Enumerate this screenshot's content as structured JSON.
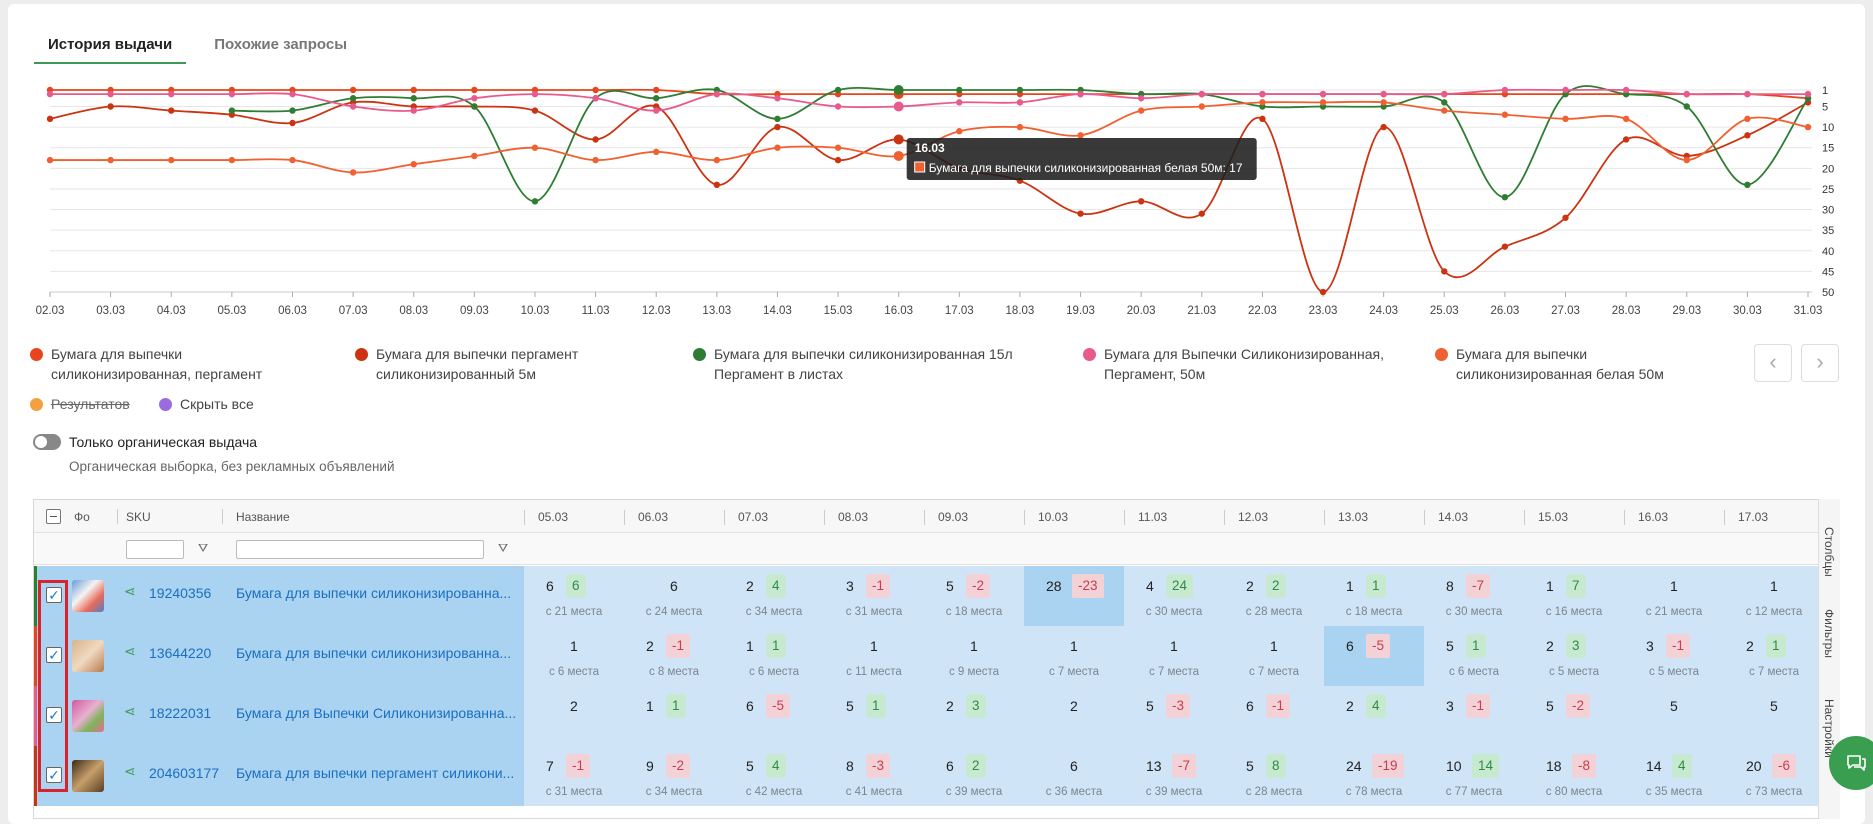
{
  "tabs": {
    "active": "История выдачи",
    "inactive": "Похожие запросы"
  },
  "chart_data": {
    "type": "line",
    "x": [
      "02.03",
      "03.03",
      "04.03",
      "05.03",
      "06.03",
      "07.03",
      "08.03",
      "09.03",
      "10.03",
      "11.03",
      "12.03",
      "13.03",
      "14.03",
      "15.03",
      "16.03",
      "17.03",
      "18.03",
      "19.03",
      "20.03",
      "21.03",
      "22.03",
      "23.03",
      "24.03",
      "25.03",
      "26.03",
      "27.03",
      "28.03",
      "29.03",
      "30.03",
      "31.03"
    ],
    "y_ticks": [
      "1",
      "5",
      "10",
      "15",
      "20",
      "25",
      "30",
      "35",
      "40",
      "45",
      "50"
    ],
    "ylim": [
      1,
      50
    ],
    "y_reversed": true,
    "grid": true,
    "series": [
      {
        "name": "Бумага для выпечки силиконизированная, пергамент",
        "color": "#e8451d",
        "values": [
          1,
          1,
          1,
          1,
          1,
          1,
          1,
          1,
          1,
          1,
          1,
          2,
          2,
          2,
          2,
          2,
          2,
          2,
          2,
          2,
          2,
          2,
          2,
          2,
          2,
          2,
          2,
          2,
          2,
          3
        ]
      },
      {
        "name": "Бумага для выпечки пергамент силиконизированный 5м",
        "color": "#cc3311",
        "values": [
          8,
          5,
          6,
          7,
          9,
          4,
          5,
          5,
          6,
          13,
          5,
          24,
          10,
          18,
          13,
          20,
          23,
          31,
          28,
          31,
          8,
          50,
          10,
          45,
          39,
          32,
          13,
          17,
          12,
          4
        ]
      },
      {
        "name": "Бумага для выпечки силиконизированная 15л Пергамент в листах",
        "color": "#2e7d32",
        "values": [
          null,
          null,
          null,
          6,
          6,
          3,
          3,
          5,
          28,
          3,
          3,
          1,
          8,
          1,
          1,
          1,
          1,
          1,
          2,
          2,
          5,
          5,
          5,
          4,
          27,
          2,
          2,
          5,
          24,
          3
        ]
      },
      {
        "name": "Бумага для Выпечки Силиконизированная, Пергамент, 50м",
        "color": "#e85a8c",
        "values": [
          2,
          2,
          2,
          2,
          2,
          5,
          6,
          3,
          2,
          3,
          6,
          2,
          3,
          5,
          5,
          4,
          4,
          2,
          3,
          2,
          2,
          2,
          2,
          2,
          1,
          1,
          1,
          2,
          2,
          2
        ]
      },
      {
        "name": "Бумага для выпечки силиконизированная белая 50м",
        "color": "#f06030",
        "values": [
          18,
          18,
          18,
          18,
          18,
          21,
          19,
          17,
          15,
          18,
          16,
          18,
          15,
          15,
          17,
          11,
          10,
          12,
          6,
          5,
          4,
          4,
          4,
          6,
          7,
          8,
          8,
          18,
          8,
          10
        ]
      }
    ]
  },
  "tooltip": {
    "date": "16.03",
    "text": "Бумага для выпечки силиконизированная белая 50м: 17"
  },
  "legend": [
    {
      "line1": "Бумага для выпечки",
      "line2": "силиконизированная, пергамент",
      "color": "#e8451d"
    },
    {
      "line1": "Бумага для выпечки пергамент",
      "line2": "силиконизированный 5м",
      "color": "#cc3311"
    },
    {
      "line1": "Бумага для выпечки силиконизированная 15л",
      "line2": "Пергамент в листах",
      "color": "#2e7d32"
    },
    {
      "line1": "Бумага для Выпечки Силиконизированная,",
      "line2": "Пергамент, 50м",
      "color": "#e85a8c"
    },
    {
      "line1": "Бумага для выпечки",
      "line2": "силиконизированная белая 50м",
      "color": "#f06030"
    }
  ],
  "legend_extra": {
    "results": "Результатов",
    "hide_all": "Скрыть все",
    "results_color": "#f5a040",
    "hide_color": "#9b6be0"
  },
  "organic": {
    "title": "Только органическая выдача",
    "subtitle": "Органическая выборка, без рекламных объявлений"
  },
  "table": {
    "col_photo": "Фо",
    "col_sku": "SKU",
    "col_name": "Название",
    "dates": [
      "05.03",
      "06.03",
      "07.03",
      "08.03",
      "09.03",
      "10.03",
      "11.03",
      "12.03",
      "13.03",
      "14.03",
      "15.03",
      "16.03",
      "17.03"
    ],
    "sidebar": [
      "Столбцы",
      "Фильтры",
      "Настройки"
    ],
    "rows": [
      {
        "sku": "19240356",
        "name": "Бумага для выпечки силиконизированна...",
        "accent": "#2e7d32",
        "cells": [
          {
            "pos": "6",
            "delta": "6",
            "dir": "up",
            "sub": "с 21 места"
          },
          {
            "pos": "6",
            "delta": "",
            "dir": "",
            "sub": "с 24 места"
          },
          {
            "pos": "2",
            "delta": "4",
            "dir": "up",
            "sub": "с 34 места"
          },
          {
            "pos": "3",
            "delta": "-1",
            "dir": "down",
            "sub": "с 31 места"
          },
          {
            "pos": "5",
            "delta": "-2",
            "dir": "down",
            "sub": "с 18 места"
          },
          {
            "pos": "28",
            "delta": "-23",
            "dir": "down",
            "sub": "",
            "hl": true
          },
          {
            "pos": "4",
            "delta": "24",
            "dir": "up",
            "sub": "с 30 места"
          },
          {
            "pos": "2",
            "delta": "2",
            "dir": "up",
            "sub": "с 28 места"
          },
          {
            "pos": "1",
            "delta": "1",
            "dir": "up",
            "sub": "с 18 места"
          },
          {
            "pos": "8",
            "delta": "-7",
            "dir": "down",
            "sub": "с 30 места"
          },
          {
            "pos": "1",
            "delta": "7",
            "dir": "up",
            "sub": "с 16 места"
          },
          {
            "pos": "1",
            "delta": "",
            "dir": "",
            "sub": "с 21 места"
          },
          {
            "pos": "1",
            "delta": "",
            "dir": "",
            "sub": "с 12 места"
          }
        ]
      },
      {
        "sku": "13644220",
        "name": "Бумага для выпечки силиконизированна...",
        "accent": "#e8451d",
        "cells": [
          {
            "pos": "1",
            "delta": "",
            "dir": "",
            "sub": "с 6 места"
          },
          {
            "pos": "2",
            "delta": "-1",
            "dir": "down",
            "sub": "с 8 места"
          },
          {
            "pos": "1",
            "delta": "1",
            "dir": "up",
            "sub": "с 6 места"
          },
          {
            "pos": "1",
            "delta": "",
            "dir": "",
            "sub": "с 11 места"
          },
          {
            "pos": "1",
            "delta": "",
            "dir": "",
            "sub": "с 9 места"
          },
          {
            "pos": "1",
            "delta": "",
            "dir": "",
            "sub": "с 7 места"
          },
          {
            "pos": "1",
            "delta": "",
            "dir": "",
            "sub": "с 7 места"
          },
          {
            "pos": "1",
            "delta": "",
            "dir": "",
            "sub": "с 7 места"
          },
          {
            "pos": "6",
            "delta": "-5",
            "dir": "down",
            "sub": "",
            "hl": true
          },
          {
            "pos": "5",
            "delta": "1",
            "dir": "up",
            "sub": "с 6 места"
          },
          {
            "pos": "2",
            "delta": "3",
            "dir": "up",
            "sub": "с 5 места"
          },
          {
            "pos": "3",
            "delta": "-1",
            "dir": "down",
            "sub": "с 5 места"
          },
          {
            "pos": "2",
            "delta": "1",
            "dir": "up",
            "sub": "с 7 места"
          }
        ]
      },
      {
        "sku": "18222031",
        "name": "Бумага для Выпечки Силиконизированна...",
        "accent": "#e85a8c",
        "cells": [
          {
            "pos": "2",
            "delta": "",
            "dir": "",
            "sub": ""
          },
          {
            "pos": "1",
            "delta": "1",
            "dir": "up",
            "sub": ""
          },
          {
            "pos": "6",
            "delta": "-5",
            "dir": "down",
            "sub": ""
          },
          {
            "pos": "5",
            "delta": "1",
            "dir": "up",
            "sub": ""
          },
          {
            "pos": "2",
            "delta": "3",
            "dir": "up",
            "sub": ""
          },
          {
            "pos": "2",
            "delta": "",
            "dir": "",
            "sub": ""
          },
          {
            "pos": "5",
            "delta": "-3",
            "dir": "down",
            "sub": ""
          },
          {
            "pos": "6",
            "delta": "-1",
            "dir": "down",
            "sub": ""
          },
          {
            "pos": "2",
            "delta": "4",
            "dir": "up",
            "sub": ""
          },
          {
            "pos": "3",
            "delta": "-1",
            "dir": "down",
            "sub": ""
          },
          {
            "pos": "5",
            "delta": "-2",
            "dir": "down",
            "sub": ""
          },
          {
            "pos": "5",
            "delta": "",
            "dir": "",
            "sub": ""
          },
          {
            "pos": "5",
            "delta": "",
            "dir": "",
            "sub": ""
          }
        ]
      },
      {
        "sku": "204603177",
        "name": "Бумага для выпечки пергамент силикони...",
        "accent": "#cc3311",
        "cells": [
          {
            "pos": "7",
            "delta": "-1",
            "dir": "down",
            "sub": "с 31 места"
          },
          {
            "pos": "9",
            "delta": "-2",
            "dir": "down",
            "sub": "с 34 места"
          },
          {
            "pos": "5",
            "delta": "4",
            "dir": "up",
            "sub": "с 42 места"
          },
          {
            "pos": "8",
            "delta": "-3",
            "dir": "down",
            "sub": "с 41 места"
          },
          {
            "pos": "6",
            "delta": "2",
            "dir": "up",
            "sub": "с 39 места"
          },
          {
            "pos": "6",
            "delta": "",
            "dir": "",
            "sub": "с 36 места"
          },
          {
            "pos": "13",
            "delta": "-7",
            "dir": "down",
            "sub": "с 39 места"
          },
          {
            "pos": "5",
            "delta": "8",
            "dir": "up",
            "sub": "с 28 места"
          },
          {
            "pos": "24",
            "delta": "-19",
            "dir": "down",
            "sub": "с 78 места"
          },
          {
            "pos": "10",
            "delta": "14",
            "dir": "up",
            "sub": "с 77 места"
          },
          {
            "pos": "18",
            "delta": "-8",
            "dir": "down",
            "sub": "с 80 места"
          },
          {
            "pos": "14",
            "delta": "4",
            "dir": "up",
            "sub": "с 35 места"
          },
          {
            "pos": "20",
            "delta": "-6",
            "dir": "down",
            "sub": "с 73 места"
          }
        ]
      }
    ]
  }
}
